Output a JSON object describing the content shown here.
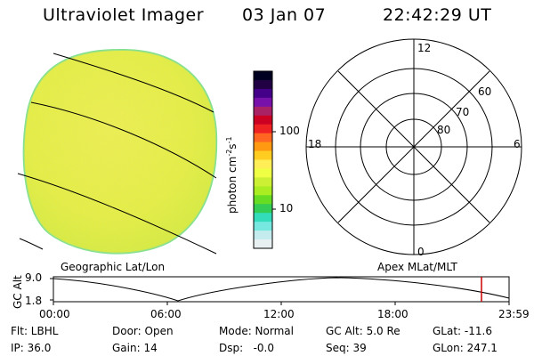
{
  "header": {
    "title": "Ultraviolet Imager",
    "date": "03 Jan 07",
    "time": "22:42:29 UT"
  },
  "colorbar": {
    "label": "photon cm-2s-1",
    "label_main": "photon cm",
    "label_exp1": "-2",
    "label_s": "s",
    "label_exp2": "-1",
    "ticks": [
      "100",
      "10"
    ],
    "colors": [
      "#000020",
      "#220044",
      "#440088",
      "#7711aa",
      "#aa2266",
      "#cc0022",
      "#ee2222",
      "#ff6622",
      "#ff9911",
      "#ffcc22",
      "#ffee55",
      "#eeff44",
      "#ccf033",
      "#aaee22",
      "#66dd22",
      "#33cc55",
      "#33ddbb",
      "#77e8e0",
      "#c4ecee",
      "#e8f0f2"
    ]
  },
  "polar_plot": {
    "labels": [
      "12",
      "60",
      "70",
      "80",
      "18",
      "6",
      "0"
    ]
  },
  "image_labels": {
    "left": "Geographic Lat/Lon",
    "right": "Apex MLat/MLT"
  },
  "timeline": {
    "ylabel": "GC Alt",
    "yticks": [
      "9.0",
      "1.8"
    ],
    "xticks": [
      "00:00",
      "06:00",
      "12:00",
      "18:00",
      "23:59"
    ],
    "current_marker_color": "#cc0000"
  },
  "status": {
    "flt": "Flt: LBHL",
    "ip": "IP: 36.0",
    "door": "Door: Open",
    "gain": "Gain: 14",
    "mode": "Mode: Normal",
    "dsp": "Dsp:   -0.0",
    "gcalt": "GC Alt: 5.0 Re",
    "seq": "Seq: 39",
    "glat": "GLat: -11.6",
    "glon": "GLon: 247.1"
  },
  "colors": {
    "earth_fill": "#e6f040",
    "earth_edge": "#80e090",
    "marker": "#cc0000"
  }
}
